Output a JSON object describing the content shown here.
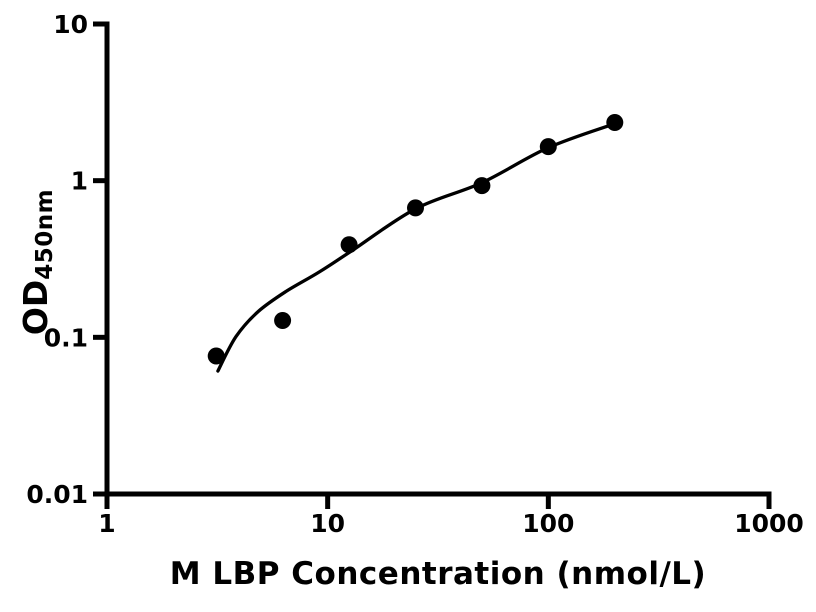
{
  "chart_data": {
    "type": "scatter",
    "title": "",
    "xlabel": "M LBP Concentration (nmol/L)",
    "ylabel": "OD",
    "ylabel_subscript": "450nm",
    "x_scale": "log",
    "y_scale": "log",
    "xlim": [
      1,
      1000
    ],
    "ylim": [
      0.01,
      10
    ],
    "grid": false,
    "legend_position": "none",
    "x_ticks": {
      "values": [
        1,
        10,
        100,
        1000
      ],
      "labels": [
        "1",
        "10",
        "100",
        "1000"
      ]
    },
    "y_ticks": {
      "values": [
        10,
        1,
        0.1,
        0.01
      ],
      "labels": [
        "10",
        "1",
        "0.1",
        "0.01"
      ]
    },
    "series": [
      {
        "name": "standard-points",
        "type": "scatter",
        "x": [
          3.125,
          6.25,
          12.5,
          25,
          50,
          100,
          200
        ],
        "y": [
          0.076,
          0.128,
          0.39,
          0.67,
          0.93,
          1.65,
          2.35
        ]
      },
      {
        "name": "fitted-curve",
        "type": "line",
        "x": [
          3.18,
          3.84,
          4.84,
          6.47,
          9.23,
          12.9,
          25.1,
          50,
          99.7,
          200
        ],
        "y": [
          0.061,
          0.101,
          0.146,
          0.196,
          0.263,
          0.358,
          0.663,
          0.971,
          1.62,
          2.31
        ]
      }
    ],
    "colors": {
      "points": "#000000",
      "curve": "#000000",
      "axis": "#000000",
      "background": "#ffffff"
    }
  }
}
